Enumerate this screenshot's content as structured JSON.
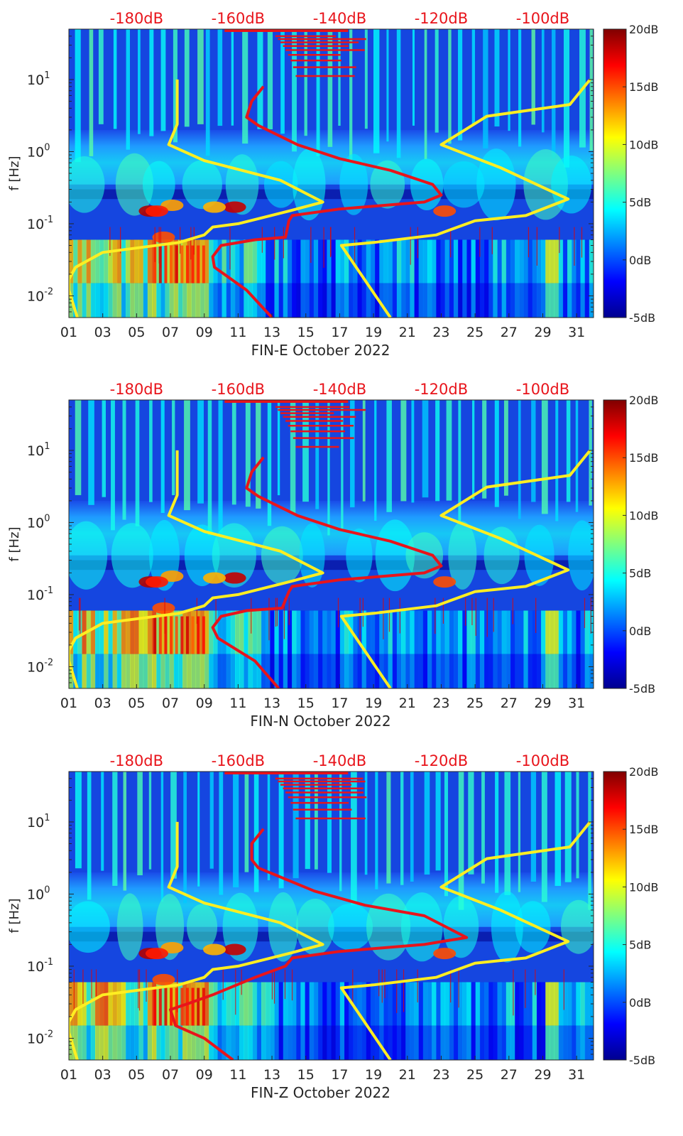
{
  "chart_data": [
    {
      "type": "heatmap",
      "station": "FIN-E",
      "xlabel": "FIN-E October 2022",
      "ylabel": "f [Hz]",
      "x_ticks": [
        "01",
        "03",
        "05",
        "07",
        "09",
        "11",
        "13",
        "15",
        "17",
        "19",
        "21",
        "23",
        "25",
        "27",
        "29",
        "31"
      ],
      "x_tick_days": [
        1,
        3,
        5,
        7,
        9,
        11,
        13,
        15,
        17,
        19,
        21,
        23,
        25,
        27,
        29,
        31
      ],
      "xlim_days": [
        1,
        32
      ],
      "y_scale": "log",
      "ylim_hz": [
        0.005,
        50
      ],
      "y_ticks": [
        {
          "base": "10",
          "exp": "-2",
          "value": 0.01
        },
        {
          "base": "10",
          "exp": "-1",
          "value": 0.1
        },
        {
          "base": "10",
          "exp": "0",
          "value": 1
        },
        {
          "base": "10",
          "exp": "1",
          "value": 10
        }
      ],
      "top_db_labels": [
        "-180dB",
        "-160dB",
        "-140dB",
        "-120dB",
        "-100dB"
      ],
      "top_db_days": [
        5,
        11,
        17,
        23,
        29
      ],
      "colorbar": {
        "labels": [
          "20dB",
          "15dB",
          "10dB",
          "5dB",
          "0dB",
          "-5dB"
        ],
        "values": [
          20,
          15,
          10,
          5,
          0,
          -5
        ],
        "range": [
          -5,
          20
        ]
      },
      "series": [
        {
          "name": "noise-model-high",
          "color": "#ffee22",
          "points": [
            [
              7.4,
              10
            ],
            [
              7.4,
              2.4
            ],
            [
              6.9,
              1.25
            ],
            [
              9,
              0.75
            ],
            [
              13.5,
              0.4
            ],
            [
              16,
              0.2
            ],
            [
              14,
              0.15
            ],
            [
              11,
              0.1
            ],
            [
              9.5,
              0.09
            ],
            [
              9,
              0.07
            ],
            [
              7.5,
              0.055
            ],
            [
              3,
              0.04
            ],
            [
              1.4,
              0.025
            ],
            [
              1,
              0.017
            ],
            [
              1,
              0.012
            ],
            [
              1.5,
              0.005
            ]
          ]
        },
        {
          "name": "noise-model-low",
          "color": "#ffee22",
          "points": [
            [
              31.8,
              10
            ],
            [
              30.6,
              4.5
            ],
            [
              25.7,
              3.1
            ],
            [
              23,
              1.25
            ],
            [
              26.5,
              0.6
            ],
            [
              30.5,
              0.22
            ],
            [
              28,
              0.13
            ],
            [
              25,
              0.11
            ],
            [
              22.7,
              0.07
            ],
            [
              19,
              0.055
            ],
            [
              17.1,
              0.05
            ],
            [
              20,
              0.005
            ]
          ]
        },
        {
          "name": "measured-psd",
          "color": "#e8141b",
          "points": [
            [
              12.5,
              8
            ],
            [
              11.8,
              5
            ],
            [
              11.5,
              3
            ],
            [
              12.2,
              2.3
            ],
            [
              14.5,
              1.25
            ],
            [
              17,
              0.8
            ],
            [
              20,
              0.55
            ],
            [
              22.5,
              0.35
            ],
            [
              23,
              0.25
            ],
            [
              22,
              0.2
            ],
            [
              17,
              0.16
            ],
            [
              14.2,
              0.13
            ],
            [
              14,
              0.11
            ],
            [
              13.8,
              0.065
            ],
            [
              12,
              0.06
            ],
            [
              10,
              0.05
            ],
            [
              9.5,
              0.035
            ],
            [
              9.6,
              0.025
            ],
            [
              11.5,
              0.012
            ],
            [
              13,
              0.005
            ]
          ]
        }
      ]
    },
    {
      "type": "heatmap",
      "station": "FIN-N",
      "xlabel": "FIN-N October 2022",
      "ylabel": "f [Hz]",
      "x_ticks": [
        "01",
        "03",
        "05",
        "07",
        "09",
        "11",
        "13",
        "15",
        "17",
        "19",
        "21",
        "23",
        "25",
        "27",
        "29",
        "31"
      ],
      "x_tick_days": [
        1,
        3,
        5,
        7,
        9,
        11,
        13,
        15,
        17,
        19,
        21,
        23,
        25,
        27,
        29,
        31
      ],
      "xlim_days": [
        1,
        32
      ],
      "y_scale": "log",
      "ylim_hz": [
        0.005,
        50
      ],
      "y_ticks": [
        {
          "base": "10",
          "exp": "-2",
          "value": 0.01
        },
        {
          "base": "10",
          "exp": "-1",
          "value": 0.1
        },
        {
          "base": "10",
          "exp": "0",
          "value": 1
        },
        {
          "base": "10",
          "exp": "1",
          "value": 10
        }
      ],
      "top_db_labels": [
        "-180dB",
        "-160dB",
        "-140dB",
        "-120dB",
        "-100dB"
      ],
      "top_db_days": [
        5,
        11,
        17,
        23,
        29
      ],
      "colorbar": {
        "labels": [
          "20dB",
          "15dB",
          "10dB",
          "5dB",
          "0dB",
          "-5dB"
        ],
        "values": [
          20,
          15,
          10,
          5,
          0,
          -5
        ],
        "range": [
          -5,
          20
        ]
      },
      "series": [
        {
          "name": "noise-model-high",
          "color": "#ffee22",
          "points": [
            [
              7.4,
              10
            ],
            [
              7.4,
              2.4
            ],
            [
              6.9,
              1.25
            ],
            [
              9,
              0.75
            ],
            [
              13.5,
              0.4
            ],
            [
              16,
              0.2
            ],
            [
              14,
              0.15
            ],
            [
              11,
              0.1
            ],
            [
              9.5,
              0.09
            ],
            [
              9,
              0.07
            ],
            [
              7.5,
              0.055
            ],
            [
              3,
              0.04
            ],
            [
              1.4,
              0.025
            ],
            [
              1,
              0.017
            ],
            [
              1,
              0.012
            ],
            [
              1.5,
              0.005
            ]
          ]
        },
        {
          "name": "noise-model-low",
          "color": "#ffee22",
          "points": [
            [
              31.8,
              10
            ],
            [
              30.6,
              4.5
            ],
            [
              25.7,
              3.1
            ],
            [
              23,
              1.25
            ],
            [
              26.5,
              0.6
            ],
            [
              30.5,
              0.22
            ],
            [
              28,
              0.13
            ],
            [
              25,
              0.11
            ],
            [
              22.7,
              0.07
            ],
            [
              19,
              0.055
            ],
            [
              17.1,
              0.05
            ],
            [
              20,
              0.005
            ]
          ]
        },
        {
          "name": "measured-psd",
          "color": "#e8141b",
          "points": [
            [
              12.5,
              8
            ],
            [
              11.8,
              5
            ],
            [
              11.5,
              3
            ],
            [
              12.2,
              2.3
            ],
            [
              14.5,
              1.25
            ],
            [
              17,
              0.8
            ],
            [
              20,
              0.55
            ],
            [
              22.5,
              0.35
            ],
            [
              23,
              0.25
            ],
            [
              22,
              0.2
            ],
            [
              17,
              0.16
            ],
            [
              14.2,
              0.13
            ],
            [
              14,
              0.11
            ],
            [
              13.6,
              0.065
            ],
            [
              11.5,
              0.06
            ],
            [
              10,
              0.05
            ],
            [
              9.5,
              0.035
            ],
            [
              9.8,
              0.025
            ],
            [
              12,
              0.012
            ],
            [
              13.4,
              0.005
            ]
          ]
        }
      ]
    },
    {
      "type": "heatmap",
      "station": "FIN-Z",
      "xlabel": "FIN-Z October 2022",
      "ylabel": "f [Hz]",
      "x_ticks": [
        "01",
        "03",
        "05",
        "07",
        "09",
        "11",
        "13",
        "15",
        "17",
        "19",
        "21",
        "23",
        "25",
        "27",
        "29",
        "31"
      ],
      "x_tick_days": [
        1,
        3,
        5,
        7,
        9,
        11,
        13,
        15,
        17,
        19,
        21,
        23,
        25,
        27,
        29,
        31
      ],
      "xlim_days": [
        1,
        32
      ],
      "y_scale": "log",
      "ylim_hz": [
        0.005,
        50
      ],
      "y_ticks": [
        {
          "base": "10",
          "exp": "-2",
          "value": 0.01
        },
        {
          "base": "10",
          "exp": "-1",
          "value": 0.1
        },
        {
          "base": "10",
          "exp": "0",
          "value": 1
        },
        {
          "base": "10",
          "exp": "1",
          "value": 10
        }
      ],
      "top_db_labels": [
        "-180dB",
        "-160dB",
        "-140dB",
        "-120dB",
        "-100dB"
      ],
      "top_db_days": [
        5,
        11,
        17,
        23,
        29
      ],
      "colorbar": {
        "labels": [
          "20dB",
          "15dB",
          "10dB",
          "5dB",
          "0dB",
          "-5dB"
        ],
        "values": [
          20,
          15,
          10,
          5,
          0,
          -5
        ],
        "range": [
          -5,
          20
        ]
      },
      "series": [
        {
          "name": "noise-model-high",
          "color": "#ffee22",
          "points": [
            [
              7.4,
              10
            ],
            [
              7.4,
              2.4
            ],
            [
              6.9,
              1.25
            ],
            [
              9,
              0.75
            ],
            [
              13.5,
              0.4
            ],
            [
              16,
              0.2
            ],
            [
              14,
              0.15
            ],
            [
              11,
              0.1
            ],
            [
              9.5,
              0.09
            ],
            [
              9,
              0.07
            ],
            [
              7.5,
              0.055
            ],
            [
              3,
              0.04
            ],
            [
              1.4,
              0.025
            ],
            [
              1,
              0.017
            ],
            [
              1,
              0.012
            ],
            [
              1.5,
              0.005
            ]
          ]
        },
        {
          "name": "noise-model-low",
          "color": "#ffee22",
          "points": [
            [
              31.8,
              10
            ],
            [
              30.6,
              4.5
            ],
            [
              25.7,
              3.1
            ],
            [
              23,
              1.25
            ],
            [
              26.5,
              0.6
            ],
            [
              30.5,
              0.22
            ],
            [
              28,
              0.13
            ],
            [
              25,
              0.11
            ],
            [
              22.7,
              0.07
            ],
            [
              19,
              0.055
            ],
            [
              17.1,
              0.05
            ],
            [
              20,
              0.005
            ]
          ]
        },
        {
          "name": "measured-psd",
          "color": "#e8141b",
          "points": [
            [
              12.5,
              8
            ],
            [
              11.8,
              5
            ],
            [
              11.8,
              3
            ],
            [
              12.2,
              2.3
            ],
            [
              15.5,
              1.1
            ],
            [
              18.5,
              0.7
            ],
            [
              22,
              0.5
            ],
            [
              24.5,
              0.25
            ],
            [
              22,
              0.2
            ],
            [
              17,
              0.16
            ],
            [
              14.2,
              0.13
            ],
            [
              13.8,
              0.1
            ],
            [
              12,
              0.07
            ],
            [
              9.5,
              0.04
            ],
            [
              8,
              0.03
            ],
            [
              7,
              0.025
            ],
            [
              7.3,
              0.015
            ],
            [
              9,
              0.01
            ],
            [
              10.7,
              0.005
            ]
          ]
        }
      ]
    }
  ]
}
